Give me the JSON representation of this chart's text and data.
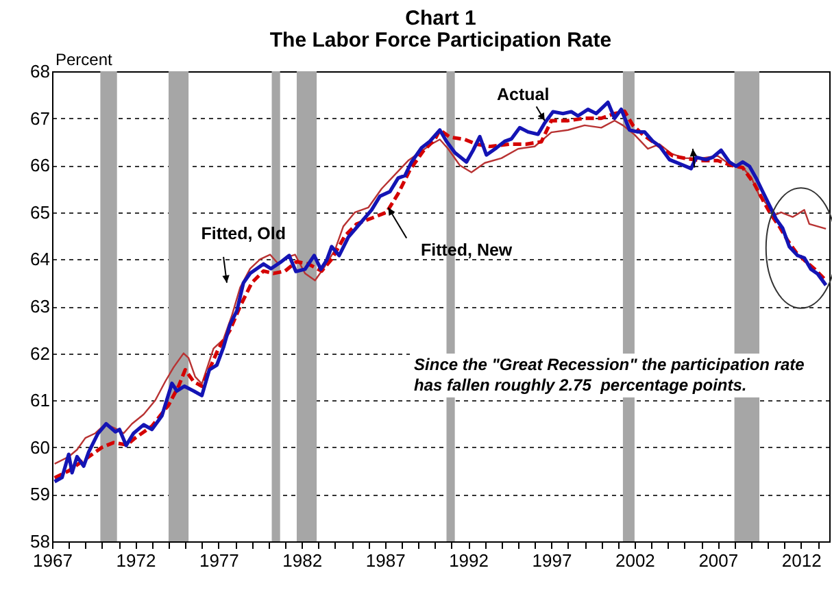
{
  "chart_data": {
    "type": "line",
    "title": "Chart 1",
    "subtitle": "The Labor Force Participation Rate",
    "ylabel": "Percent",
    "xlim": [
      1967,
      2013.7
    ],
    "ylim": [
      58,
      68
    ],
    "yticks": [
      58,
      59,
      60,
      61,
      62,
      63,
      64,
      65,
      66,
      67,
      68
    ],
    "xticks": [
      1967,
      {
        "value": 1968,
        "label": null
      },
      {
        "value": 1969,
        "label": null
      },
      {
        "value": 1970,
        "label": null
      },
      {
        "value": 1971,
        "label": null
      },
      1972,
      {
        "value": 1973,
        "label": null
      },
      {
        "value": 1974,
        "label": null
      },
      {
        "value": 1975,
        "label": null
      },
      {
        "value": 1976,
        "label": null
      },
      1977,
      {
        "value": 1978,
        "label": null
      },
      {
        "value": 1979,
        "label": null
      },
      {
        "value": 1980,
        "label": null
      },
      {
        "value": 1981,
        "label": null
      },
      1982,
      {
        "value": 1983,
        "label": null
      },
      {
        "value": 1984,
        "label": null
      },
      {
        "value": 1985,
        "label": null
      },
      {
        "value": 1986,
        "label": null
      },
      1987,
      {
        "value": 1988,
        "label": null
      },
      {
        "value": 1989,
        "label": null
      },
      {
        "value": 1990,
        "label": null
      },
      {
        "value": 1991,
        "label": null
      },
      1992,
      {
        "value": 1993,
        "label": null
      },
      {
        "value": 1994,
        "label": null
      },
      {
        "value": 1995,
        "label": null
      },
      {
        "value": 1996,
        "label": null
      },
      1997,
      {
        "value": 1998,
        "label": null
      },
      {
        "value": 1999,
        "label": null
      },
      {
        "value": 2000,
        "label": null
      },
      {
        "value": 2001,
        "label": null
      },
      2002,
      {
        "value": 2003,
        "label": null
      },
      {
        "value": 2004,
        "label": null
      },
      {
        "value": 2005,
        "label": null
      },
      {
        "value": 2006,
        "label": null
      },
      2007,
      {
        "value": 2008,
        "label": null
      },
      {
        "value": 2009,
        "label": null
      },
      {
        "value": 2010,
        "label": null
      },
      {
        "value": 2011,
        "label": null
      },
      2012,
      {
        "value": 2013,
        "label": null
      }
    ],
    "grid": "y",
    "bands": [
      {
        "axis": "x",
        "from": 1969.9,
        "to": 1970.9,
        "color": "#a6a6a6"
      },
      {
        "axis": "x",
        "from": 1974.0,
        "to": 1975.2,
        "color": "#a6a6a6"
      },
      {
        "axis": "x",
        "from": 1980.2,
        "to": 1980.7,
        "color": "#a6a6a6"
      },
      {
        "axis": "x",
        "from": 1981.7,
        "to": 1982.9,
        "color": "#a6a6a6"
      },
      {
        "axis": "x",
        "from": 1990.7,
        "to": 1991.2,
        "color": "#a6a6a6"
      },
      {
        "axis": "x",
        "from": 2001.3,
        "to": 2002.0,
        "color": "#a6a6a6"
      },
      {
        "axis": "x",
        "from": 2008.0,
        "to": 2009.5,
        "color": "#a6a6a6"
      }
    ],
    "series": [
      {
        "name": "Fitted, Old",
        "color": "#b83232",
        "line_style": "solid",
        "x": [
          1967.15,
          1968.0,
          1968.5,
          1969.0,
          1969.6,
          1970.2,
          1970.8,
          1971.3,
          1971.8,
          1972.5,
          1973.2,
          1973.8,
          1974.3,
          1974.9,
          1975.2,
          1975.6,
          1976.0,
          1976.7,
          1977.3,
          1977.8,
          1978.3,
          1978.9,
          1979.5,
          1980.1,
          1980.6,
          1981.2,
          1981.6,
          1982.2,
          1982.8,
          1983.3,
          1984.0,
          1984.5,
          1985.2,
          1986.0,
          1986.8,
          1987.6,
          1988.4,
          1989.2,
          1989.8,
          1990.3,
          1990.8,
          1991.5,
          1992.2,
          1993.0,
          1994.0,
          1995.0,
          1996.0,
          1997.0,
          1998.0,
          1999.0,
          2000.0,
          2000.8,
          2001.3,
          2002.0,
          2002.8,
          2003.5,
          2004.2,
          2005.0,
          2006.0,
          2007.0,
          2007.8,
          2008.5,
          2009.0,
          2009.5,
          2010.0,
          2010.5,
          2010.8,
          2011.5,
          2012.2,
          2012.5,
          2013.5
        ],
        "values": [
          59.65,
          59.8,
          59.95,
          60.2,
          60.3,
          60.5,
          60.4,
          60.3,
          60.5,
          60.7,
          61.0,
          61.4,
          61.7,
          62.0,
          61.9,
          61.5,
          61.35,
          62.1,
          62.3,
          62.8,
          63.4,
          63.8,
          64.0,
          64.1,
          63.9,
          64.05,
          64.1,
          63.7,
          63.55,
          63.8,
          64.2,
          64.7,
          65.0,
          65.1,
          65.5,
          65.8,
          66.1,
          66.3,
          66.45,
          66.55,
          66.35,
          66.0,
          65.85,
          66.05,
          66.15,
          66.35,
          66.4,
          66.7,
          66.75,
          66.85,
          66.8,
          66.95,
          66.85,
          66.65,
          66.35,
          66.45,
          66.25,
          66.15,
          66.15,
          66.2,
          66.0,
          65.95,
          65.75,
          65.35,
          65.15,
          64.95,
          65.0,
          64.9,
          65.05,
          64.75,
          64.65
        ]
      },
      {
        "name": "Fitted, New",
        "color": "#d40000",
        "line_style": "dashed",
        "x": [
          1967.15,
          1968.0,
          1969.0,
          1970.0,
          1970.7,
          1971.5,
          1972.0,
          1973.0,
          1974.0,
          1974.6,
          1975.0,
          1975.5,
          1976.0,
          1976.5,
          1977.0,
          1977.7,
          1978.3,
          1979.0,
          1979.7,
          1980.3,
          1981.0,
          1981.7,
          1982.4,
          1983.2,
          1983.8,
          1984.6,
          1985.3,
          1987.1,
          1987.8,
          1988.5,
          1989.3,
          1990.0,
          1990.3,
          1990.9,
          1991.8,
          1992.5,
          1993.3,
          1994.5,
          1995.5,
          1996.4,
          1997.0,
          1998.0,
          1999.0,
          2000.0,
          2000.8,
          2001.4,
          2001.9,
          2002.5,
          2003.3,
          2004.3,
          2005.0,
          2006.0,
          2007.0,
          2007.8,
          2008.5,
          2009.2,
          2009.8,
          2010.2,
          2010.7,
          2011.2,
          2011.7,
          2012.3,
          2012.8,
          2013.5
        ],
        "values": [
          59.35,
          59.5,
          59.75,
          60.0,
          60.1,
          60.05,
          60.2,
          60.45,
          60.9,
          61.3,
          61.65,
          61.4,
          61.3,
          61.7,
          62.1,
          62.5,
          63.0,
          63.5,
          63.75,
          63.7,
          63.75,
          63.95,
          63.9,
          63.75,
          64.0,
          64.5,
          64.75,
          65.0,
          65.4,
          65.9,
          66.3,
          66.55,
          66.75,
          66.6,
          66.55,
          66.45,
          66.4,
          66.45,
          66.45,
          66.5,
          66.95,
          66.95,
          67.0,
          67.0,
          67.1,
          67.15,
          66.85,
          66.65,
          66.45,
          66.2,
          66.15,
          66.1,
          66.1,
          66.0,
          65.95,
          65.6,
          65.2,
          64.95,
          64.7,
          64.4,
          64.15,
          63.95,
          63.8,
          63.55
        ]
      },
      {
        "name": "Actual",
        "color": "#1414b4",
        "line_style": "solid",
        "x": [
          1967.15,
          1967.6,
          1968.0,
          1968.2,
          1968.5,
          1968.9,
          1969.2,
          1969.75,
          1970.25,
          1970.8,
          1971.05,
          1971.45,
          1971.9,
          1972.5,
          1973.0,
          1973.6,
          1974.2,
          1974.5,
          1974.95,
          1975.5,
          1976.0,
          1976.45,
          1976.9,
          1977.3,
          1977.7,
          1978.1,
          1978.5,
          1978.9,
          1979.3,
          1979.7,
          1980.15,
          1980.7,
          1981.25,
          1981.65,
          1982.2,
          1982.75,
          1983.15,
          1983.5,
          1983.8,
          1984.25,
          1984.8,
          1985.5,
          1986.2,
          1986.7,
          1987.3,
          1987.8,
          1988.2,
          1988.6,
          1989.2,
          1989.7,
          1990.3,
          1990.7,
          1991.2,
          1991.9,
          1992.3,
          1992.7,
          1993.1,
          1993.7,
          1994.2,
          1994.6,
          1995.1,
          1995.6,
          1996.2,
          1996.6,
          1997.1,
          1997.7,
          1998.2,
          1998.6,
          1999.2,
          1999.7,
          2000.4,
          2000.8,
          2001.2,
          2001.7,
          2002.2,
          2002.6,
          2003.1,
          2003.5,
          2004.1,
          2004.8,
          2005.4,
          2005.7,
          2006.3,
          2006.7,
          2007.2,
          2007.7,
          2008.1,
          2008.5,
          2008.9,
          2009.3,
          2009.7,
          2010.1,
          2010.5,
          2010.9,
          2011.3,
          2011.8,
          2012.2,
          2012.6,
          2013.0,
          2013.5
        ],
        "values": [
          59.27,
          59.36,
          59.85,
          59.46,
          59.8,
          59.6,
          59.9,
          60.29,
          60.5,
          60.33,
          60.38,
          60.04,
          60.3,
          60.48,
          60.38,
          60.67,
          61.36,
          61.2,
          61.3,
          61.2,
          61.1,
          61.65,
          61.75,
          62.13,
          62.62,
          62.9,
          63.5,
          63.7,
          63.8,
          63.9,
          63.8,
          63.93,
          64.08,
          63.74,
          63.79,
          64.08,
          63.79,
          63.98,
          64.27,
          64.08,
          64.47,
          64.76,
          65.05,
          65.34,
          65.44,
          65.73,
          65.78,
          66.07,
          66.37,
          66.51,
          66.75,
          66.51,
          66.27,
          66.07,
          66.32,
          66.61,
          66.22,
          66.37,
          66.51,
          66.56,
          66.8,
          66.71,
          66.66,
          66.9,
          67.14,
          67.1,
          67.14,
          67.05,
          67.19,
          67.1,
          67.34,
          67.0,
          67.19,
          66.75,
          66.71,
          66.71,
          66.51,
          66.41,
          66.12,
          66.02,
          65.93,
          66.17,
          66.12,
          66.17,
          66.32,
          66.07,
          65.98,
          66.07,
          65.98,
          65.73,
          65.44,
          65.15,
          64.86,
          64.66,
          64.27,
          64.08,
          64.03,
          63.79,
          63.69,
          63.45
        ]
      }
    ],
    "annotations": [
      "Since the \"Great Recession\" the participation rate has fallen roughly 2.75  percentage points."
    ]
  }
}
